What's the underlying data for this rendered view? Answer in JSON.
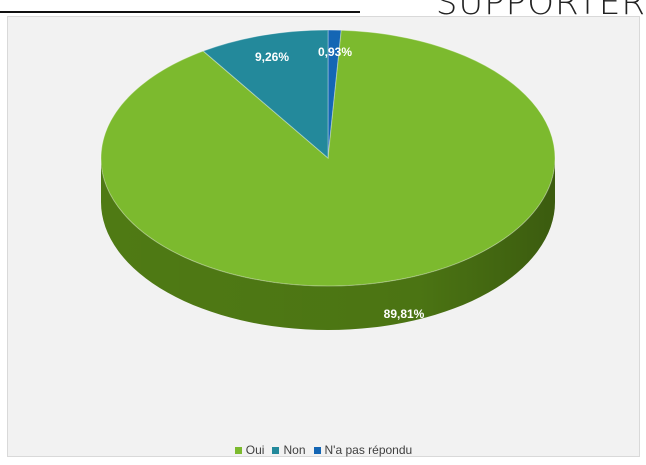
{
  "header_text": "SUPPORTER",
  "chart_data": {
    "type": "pie",
    "style": "3d",
    "categories": [
      "Oui",
      "Non",
      "N'a pas répondu"
    ],
    "values": [
      89.81,
      9.26,
      0.93
    ],
    "data_labels": [
      "89,81%",
      "9,26%",
      "0,93%"
    ],
    "colors": [
      "#7cba2e",
      "#23899b",
      "#1466b4"
    ],
    "side_colors": [
      "#4f7a14",
      "#156170",
      "#0c4985"
    ],
    "legend_position": "bottom",
    "title": ""
  }
}
